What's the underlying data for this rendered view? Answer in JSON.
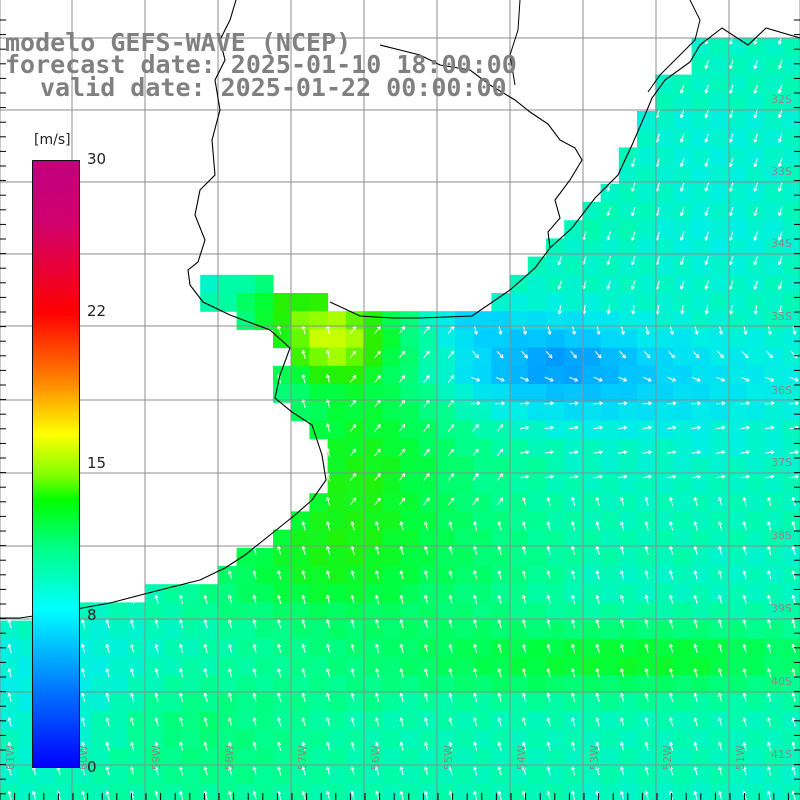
{
  "title": {
    "line1": "modelo GEFS-WAVE (NCEP)",
    "line2": "forecast date: 2025-01-10 18:00:00",
    "line3": "valid date: 2025-01-22 00:00:00"
  },
  "colorbar": {
    "unit": "[m/s]",
    "ticks": [
      {
        "value": 30,
        "label": "30"
      },
      {
        "value": 22,
        "label": "22"
      },
      {
        "value": 15,
        "label": "15"
      },
      {
        "value": 8,
        "label": "8"
      },
      {
        "value": 0,
        "label": "0"
      }
    ],
    "colors": [
      "#0000ff",
      "#0078ff",
      "#00ffff",
      "#00ff7a",
      "#00ff00",
      "#80ff00",
      "#ffff00",
      "#ff8000",
      "#ff0000",
      "#c0007e"
    ]
  },
  "map": {
    "region": "Rio de la Plata / Uruguay coast",
    "lat_labels": [
      "32S",
      "33S",
      "34S",
      "35S",
      "36S",
      "37S",
      "38S",
      "39S",
      "40S",
      "41S"
    ],
    "lon_labels": [
      "61W",
      "60W",
      "59W",
      "58W",
      "57W",
      "56W",
      "55W",
      "54W",
      "53W",
      "52W",
      "51W"
    ],
    "land_color": "#ffffff",
    "grid_color": "#808080",
    "coast_color": "#000000",
    "arrow_color": "#ffffff"
  }
}
